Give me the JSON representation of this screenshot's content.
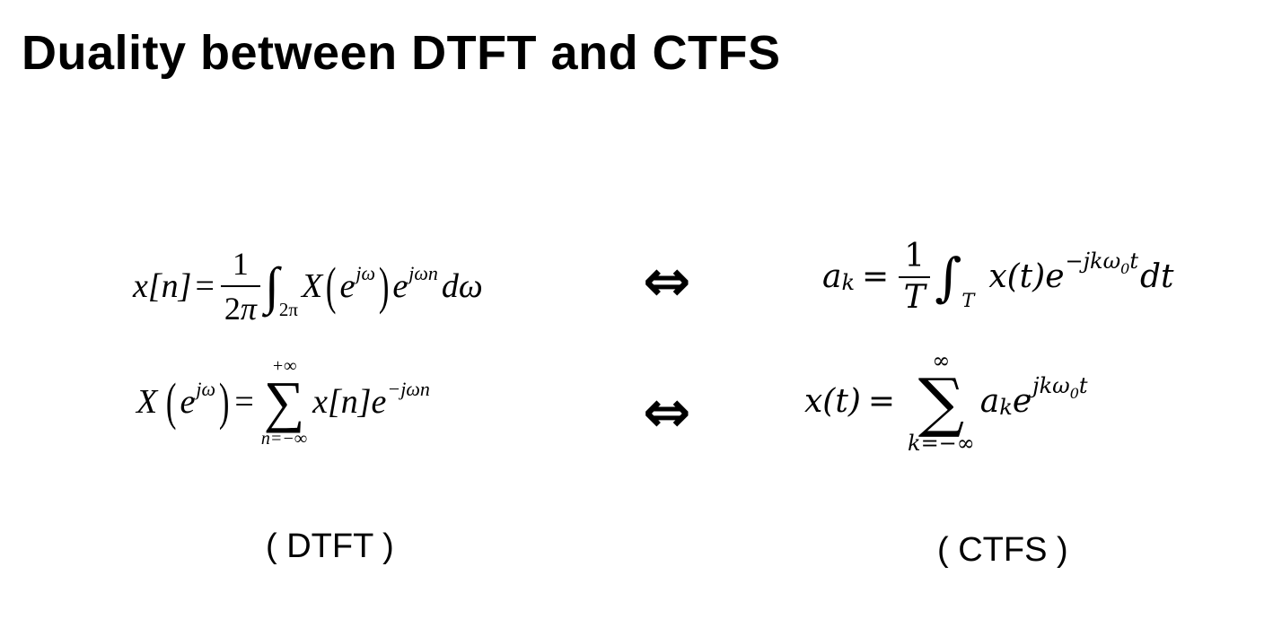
{
  "title": "Duality between DTFT and CTFS",
  "dtft": {
    "synthesis": {
      "lhs": "x[n]",
      "eq": "=",
      "frac_num": "1",
      "frac_den_num": "2",
      "frac_den_pi": "π",
      "integral": "∫",
      "integral_sub": "2π",
      "X": "X",
      "e1": "e",
      "e1_exp": "jω",
      "e2": "e",
      "e2_exp": "jωn",
      "dw": "dω"
    },
    "analysis": {
      "X": "X",
      "e": "e",
      "e_exp": "jω",
      "eq": "=",
      "sum_upper": "+∞",
      "sum_lower": "n=−∞",
      "sigma": "∑",
      "term": "x[n]",
      "e2": "e",
      "e2_exp": "−jωn"
    },
    "caption": "( DTFT )"
  },
  "ctfs": {
    "analysis": {
      "lhs_a": "a",
      "lhs_sub": "k",
      "eq": "=",
      "frac_num": "1",
      "frac_den": "T",
      "integral": "∫",
      "integral_sub": "T",
      "term": "x(t)e",
      "exp": "−jkω",
      "exp_sub": "0",
      "exp_t": "t",
      "dt": "dt"
    },
    "synthesis": {
      "lhs": "x(t)",
      "eq": "=",
      "sum_upper": "∞",
      "sum_lower": "k=−∞",
      "sigma": "∑",
      "a": "a",
      "a_sub": "k",
      "e": "e",
      "exp": "jkω",
      "exp_sub": "0",
      "exp_t": "t"
    },
    "caption": "( CTFS )"
  },
  "arrows": {
    "top": "⇔",
    "bottom": "⇔"
  }
}
